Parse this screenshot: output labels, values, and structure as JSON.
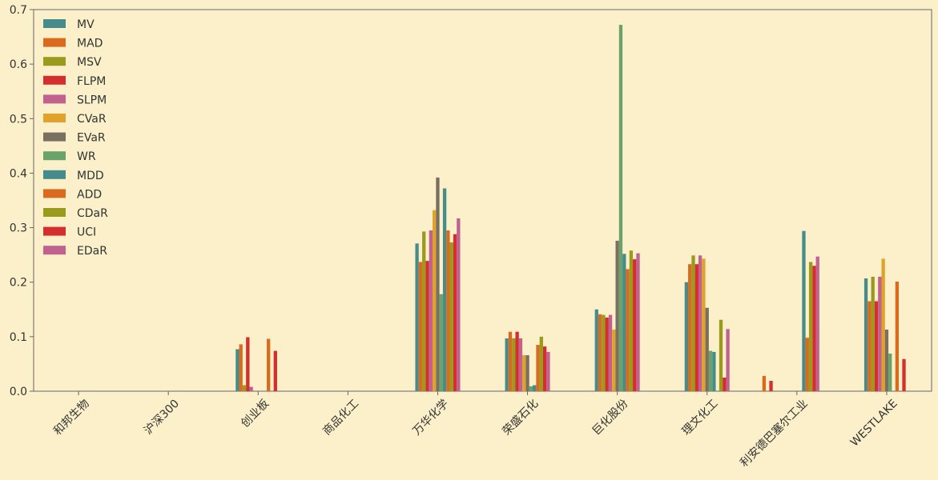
{
  "chart_data": {
    "type": "bar",
    "title": "",
    "xlabel": "",
    "ylabel": "",
    "ylim": [
      0,
      0.7
    ],
    "yticks": [
      0.0,
      0.1,
      0.2,
      0.3,
      0.4,
      0.5,
      0.6,
      0.7
    ],
    "ytick_labels": [
      "0.0",
      "0.1",
      "0.2",
      "0.3",
      "0.4",
      "0.5",
      "0.6",
      "0.7"
    ],
    "grid": false,
    "legend_position": "top-left",
    "background_color": "#fbf0c9",
    "categories": [
      "和邦生物",
      "沪深300",
      "创业板",
      "商品化工",
      "万华化学",
      "荣盛石化",
      "巨化股份",
      "理文化工",
      "利安德巴塞尔工业",
      "WESTLAKE"
    ],
    "series": [
      {
        "name": "MV",
        "color": "#468c8c",
        "values": [
          0,
          0,
          0.077,
          0,
          0.271,
          0.097,
          0.15,
          0.2,
          0,
          0.207
        ]
      },
      {
        "name": "MAD",
        "color": "#d96a1e",
        "values": [
          0,
          0,
          0.086,
          0,
          0.237,
          0.109,
          0.141,
          0.233,
          0,
          0.165
        ]
      },
      {
        "name": "MSV",
        "color": "#9a9a1e",
        "values": [
          0,
          0,
          0.011,
          0,
          0.293,
          0.097,
          0.14,
          0.249,
          0,
          0.21
        ]
      },
      {
        "name": "FLPM",
        "color": "#d42e2e",
        "values": [
          0,
          0,
          0.099,
          0,
          0.239,
          0.109,
          0.135,
          0.233,
          0,
          0.165
        ]
      },
      {
        "name": "SLPM",
        "color": "#c0618f",
        "values": [
          0,
          0,
          0.008,
          0,
          0.295,
          0.097,
          0.14,
          0.249,
          0,
          0.21
        ]
      },
      {
        "name": "CVaR",
        "color": "#e0a22a",
        "values": [
          0,
          0,
          0,
          0,
          0.332,
          0.066,
          0.113,
          0.243,
          0,
          0.243
        ]
      },
      {
        "name": "EVaR",
        "color": "#7a7062",
        "values": [
          0,
          0,
          0,
          0,
          0.392,
          0.066,
          0.276,
          0.153,
          0,
          0.113
        ]
      },
      {
        "name": "WR",
        "color": "#6aa36a",
        "values": [
          0,
          0,
          0,
          0,
          0.178,
          0.009,
          0.672,
          0.074,
          0,
          0.069
        ]
      },
      {
        "name": "MDD",
        "color": "#468c8c",
        "values": [
          0,
          0,
          0,
          0,
          0.372,
          0.011,
          0.252,
          0.072,
          0.294,
          0
        ]
      },
      {
        "name": "ADD",
        "color": "#d96a1e",
        "values": [
          0,
          0,
          0.096,
          0,
          0.295,
          0.085,
          0.224,
          0,
          0.098,
          0.201
        ]
      },
      {
        "name": "CDaR",
        "color": "#9a9a1e",
        "values": [
          0,
          0,
          0,
          0,
          0.273,
          0.1,
          0.258,
          0.131,
          0.237,
          0
        ]
      },
      {
        "name": "UCI",
        "color": "#d42e2e",
        "values": [
          0,
          0,
          0.074,
          0,
          0.288,
          0.082,
          0.242,
          0.025,
          0.23,
          0.059
        ]
      },
      {
        "name": "EDaR",
        "color": "#c0618f",
        "values": [
          0,
          0,
          0,
          0,
          0.317,
          0.072,
          0.253,
          0.114,
          0.247,
          0
        ]
      }
    ],
    "extra_bars": [
      {
        "category_index": 8,
        "series_index": 1,
        "offset_index": 0,
        "value": 0.028
      },
      {
        "category_index": 8,
        "series_index": 3,
        "offset_index": 1,
        "value": 0.019
      }
    ]
  }
}
